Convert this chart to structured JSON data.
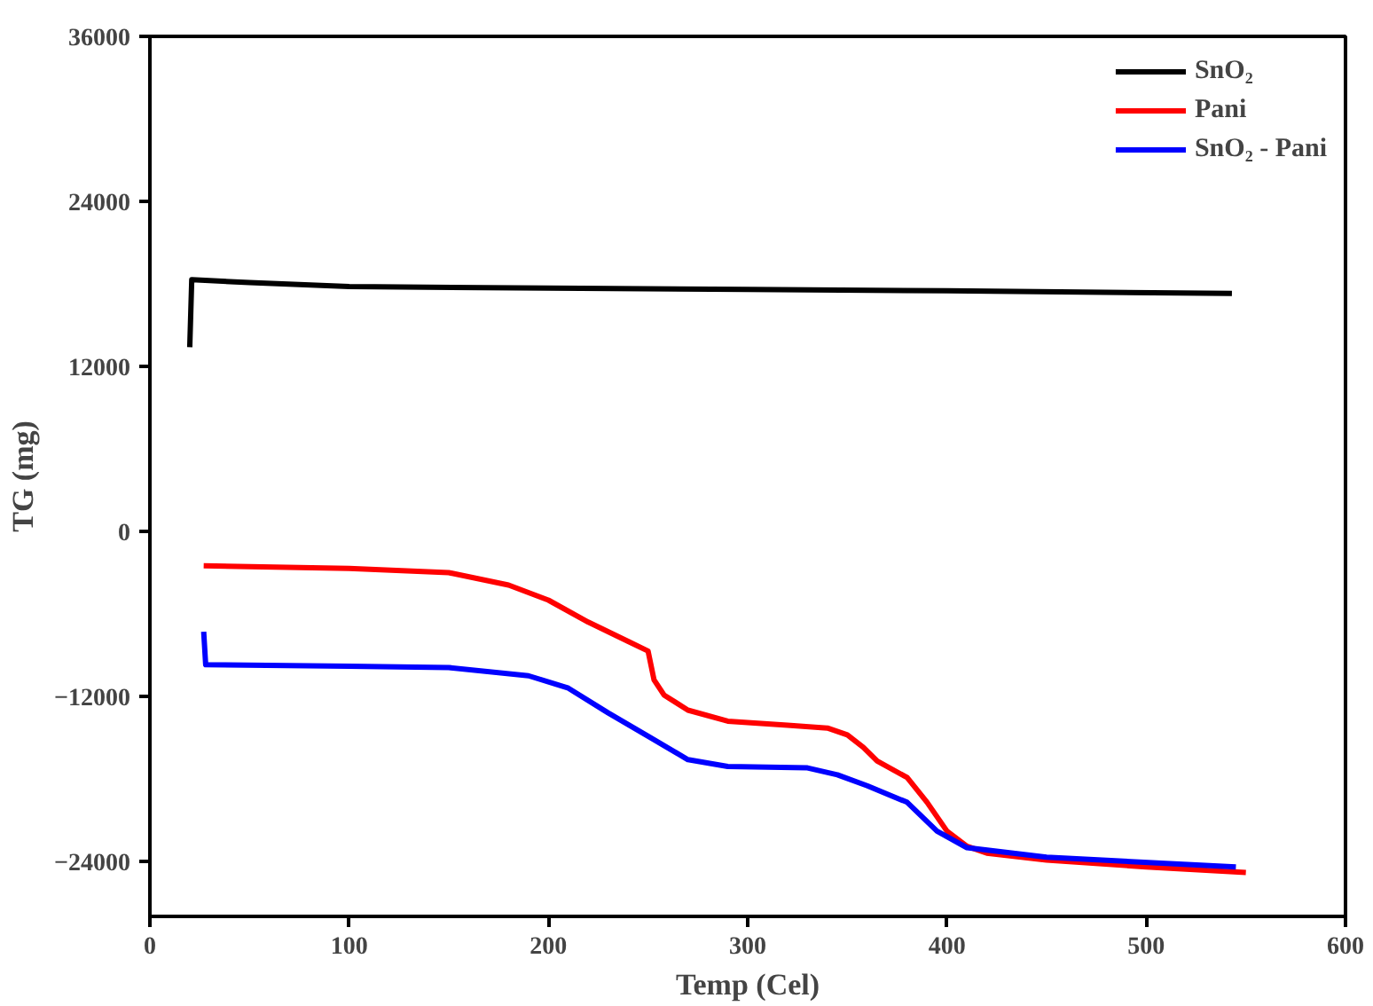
{
  "chart_data": {
    "type": "line",
    "xlabel": "Temp (Cel)",
    "ylabel": "TG (mg)",
    "xlim": [
      0,
      600
    ],
    "xticks": [
      0,
      100,
      200,
      300,
      400,
      500,
      600
    ],
    "ylim": [
      -28000,
      36000
    ],
    "yticks": [
      -24000,
      -12000,
      0,
      12000,
      24000,
      36000
    ],
    "grid": false,
    "legend": "top right",
    "marker": "none",
    "line_style": "solid",
    "series": [
      {
        "name": "SnO₂",
        "color": "#000000",
        "x": [
          20,
          21,
          50,
          100,
          200,
          300,
          400,
          543
        ],
        "values": [
          13400,
          18300,
          18100,
          17800,
          17700,
          17600,
          17500,
          17300
        ]
      },
      {
        "name": "Pani",
        "color": "#ff0000",
        "x": [
          27,
          100,
          150,
          180,
          200,
          220,
          240,
          250,
          253,
          258,
          270,
          290,
          320,
          340,
          350,
          358,
          365,
          380,
          390,
          400,
          410,
          420,
          450,
          500,
          550
        ],
        "values": [
          -2500,
          -2700,
          -3000,
          -3900,
          -5000,
          -6600,
          -8000,
          -8700,
          -10800,
          -11900,
          -13000,
          -13800,
          -14100,
          -14300,
          -14800,
          -15700,
          -16700,
          -17900,
          -19700,
          -21800,
          -22900,
          -23400,
          -23900,
          -24400,
          -24800
        ]
      },
      {
        "name": "SnO₂ - Pani",
        "color": "#0000ff",
        "x": [
          27,
          28,
          100,
          150,
          190,
          210,
          230,
          250,
          270,
          290,
          330,
          345,
          360,
          380,
          395,
          410,
          450,
          545
        ],
        "values": [
          -7300,
          -9700,
          -9800,
          -9900,
          -10500,
          -11400,
          -13200,
          -14900,
          -16600,
          -17100,
          -17200,
          -17700,
          -18500,
          -19700,
          -21800,
          -23000,
          -23700,
          -24400
        ]
      }
    ]
  }
}
